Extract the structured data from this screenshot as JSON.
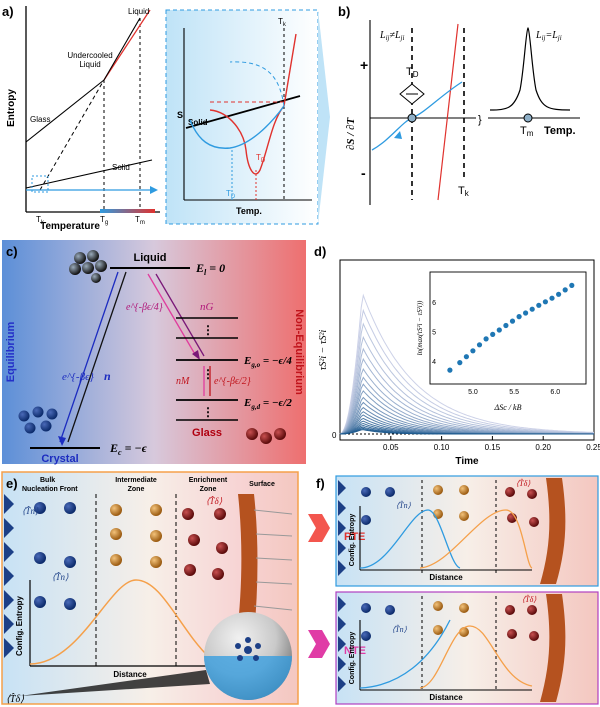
{
  "panel_labels": {
    "a": "a)",
    "b": "b)",
    "c": "c)",
    "d": "d)",
    "e": "e)",
    "f": "f)"
  },
  "panel_a": {
    "y_axis": "Entropy",
    "x_axis": "Temperature",
    "curve_labels": {
      "liquid": "Liquid",
      "undercooled": "Undercooled",
      "undercooled2": "Liquid",
      "glass": "Glass",
      "solid": "Solid"
    },
    "ticks": {
      "tk": "T",
      "tk_sub": "k",
      "tg": "T",
      "tg_sub": "g",
      "tm": "T",
      "tm_sub": "m"
    },
    "inset": {
      "y_axis": "S",
      "x_axis": "Temp.",
      "solid": "Solid",
      "tk": "T",
      "tk_sub": "k",
      "td_red": "T",
      "td_red_sub": "D",
      "td_blue": "T",
      "td_blue_sub": "D"
    }
  },
  "panel_b": {
    "left_label": "L",
    "left_sub": "ij",
    "neq": "≠",
    "left_label2": "L",
    "left_sub2": "ji",
    "right_label": "L",
    "right_sub": "ij",
    "eq": "=",
    "right_label2": "L",
    "right_sub2": "ji",
    "y_axis": "∂S / ∂T",
    "plus": "+",
    "minus": "-",
    "td": "T",
    "td_sub": "D",
    "tk": "T",
    "tk_sub": "k",
    "tm": "T",
    "tm_sub": "m",
    "x_axis": "Temp."
  },
  "panel_c": {
    "liquid": "Liquid",
    "el": "E",
    "el_sub": "l",
    "el_val": " = 0",
    "equilibrium": "Equilibrium",
    "non_equilibrium": "Non-Equilibrium",
    "rate_beta_eps4": "e^{-βϵ/4}",
    "rate_nG": "nG",
    "rate_beta_eps": "e^{-βϵ}",
    "rate_n": "n",
    "ego": "E",
    "ego_sub": "g,o",
    "ego_val": " = −ϵ/4",
    "rate_nM": "nM",
    "rate_beta_eps2": "e^{-βϵ/2}",
    "egd": "E",
    "egd_sub": "g,d",
    "egd_val": " = −ϵ/2",
    "glass": "Glass",
    "crystal": "Crystal",
    "ec": "E",
    "ec_sub": "c",
    "ec_val": " = −ϵ"
  },
  "chart_data": {
    "type": "line",
    "title": "",
    "xlabel": "Time",
    "ylabel": "τS²i − τS²i",
    "xlim": [
      0,
      0.25
    ],
    "xticks": [
      "0.05",
      "0.10",
      "0.15",
      "0.20",
      "0.25"
    ],
    "ylim": [
      0,
      1
    ],
    "series_peaks": [
      0.83,
      0.74,
      0.66,
      0.58,
      0.51,
      0.45,
      0.39,
      0.34,
      0.3,
      0.26,
      0.22,
      0.19,
      0.16,
      0.135,
      0.115,
      0.095,
      0.078,
      0.064,
      0.052,
      0.042,
      0.034,
      0.027
    ],
    "inset": {
      "type": "scatter",
      "xlabel": "ΔSc / kB",
      "ylabel": "ln(max(τS²i − τS²i))",
      "xticks": [
        "5.0",
        "5.5",
        "6.0"
      ],
      "yticks": [
        "4",
        "5",
        "6"
      ],
      "xlim": [
        4.6,
        6.3
      ],
      "ylim": [
        3.5,
        6.8
      ],
      "x": [
        4.72,
        4.84,
        4.92,
        5.0,
        5.08,
        5.16,
        5.24,
        5.32,
        5.4,
        5.48,
        5.56,
        5.64,
        5.72,
        5.8,
        5.88,
        5.96,
        6.04,
        6.12,
        6.2
      ],
      "y": [
        3.7,
        3.95,
        4.15,
        4.35,
        4.55,
        4.75,
        4.9,
        5.05,
        5.2,
        5.35,
        5.5,
        5.62,
        5.75,
        5.88,
        6.0,
        6.12,
        6.25,
        6.4,
        6.55
      ]
    }
  },
  "panel_e": {
    "bulk": "Bulk",
    "nucleation": "Nucleation Front",
    "intermediate": "Intermediate",
    "zone": "Zone",
    "enrichment": "Enrichment",
    "zone2": "Zone",
    "surface": "Surface",
    "tn": "⟨T̂n⟩",
    "tdelta": "⟨T̂δ⟩",
    "y_axis": "Config. Entropy",
    "x_axis": "Distance",
    "bottom_label": "⟨T̂δ⟩"
  },
  "panel_f": {
    "pte": "PTE",
    "nte": "NTE",
    "y_axis": "Config. Entropy",
    "x_axis": "Distance",
    "tn": "⟨T̂n⟩",
    "td": "⟨T̂δ⟩"
  },
  "colors": {
    "liquid_red": "#e0322e",
    "blue": "#2f9be0",
    "pink": "#e03c9e",
    "orange": "#f5a04a",
    "crystal_blue": "#2b45c9",
    "dark_navy": "#1c3f86"
  }
}
